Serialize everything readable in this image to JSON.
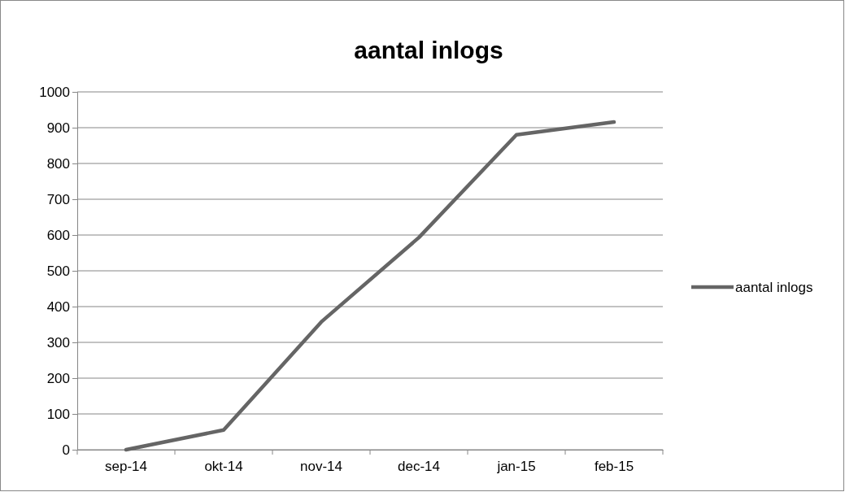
{
  "chart_data": {
    "type": "line",
    "title": "aantal inlogs",
    "categories": [
      "sep-14",
      "okt-14",
      "nov-14",
      "dec-14",
      "jan-15",
      "feb-15"
    ],
    "series": [
      {
        "name": "aantal inlogs",
        "color": "#656565",
        "values": [
          0,
          55,
          357,
          593,
          880,
          916
        ]
      }
    ],
    "ylim": [
      0,
      1000
    ],
    "yticks": [
      0,
      100,
      200,
      300,
      400,
      500,
      600,
      700,
      800,
      900,
      1000
    ],
    "grid": "y",
    "legend": "right",
    "marker": "none",
    "line_style": "solid"
  }
}
